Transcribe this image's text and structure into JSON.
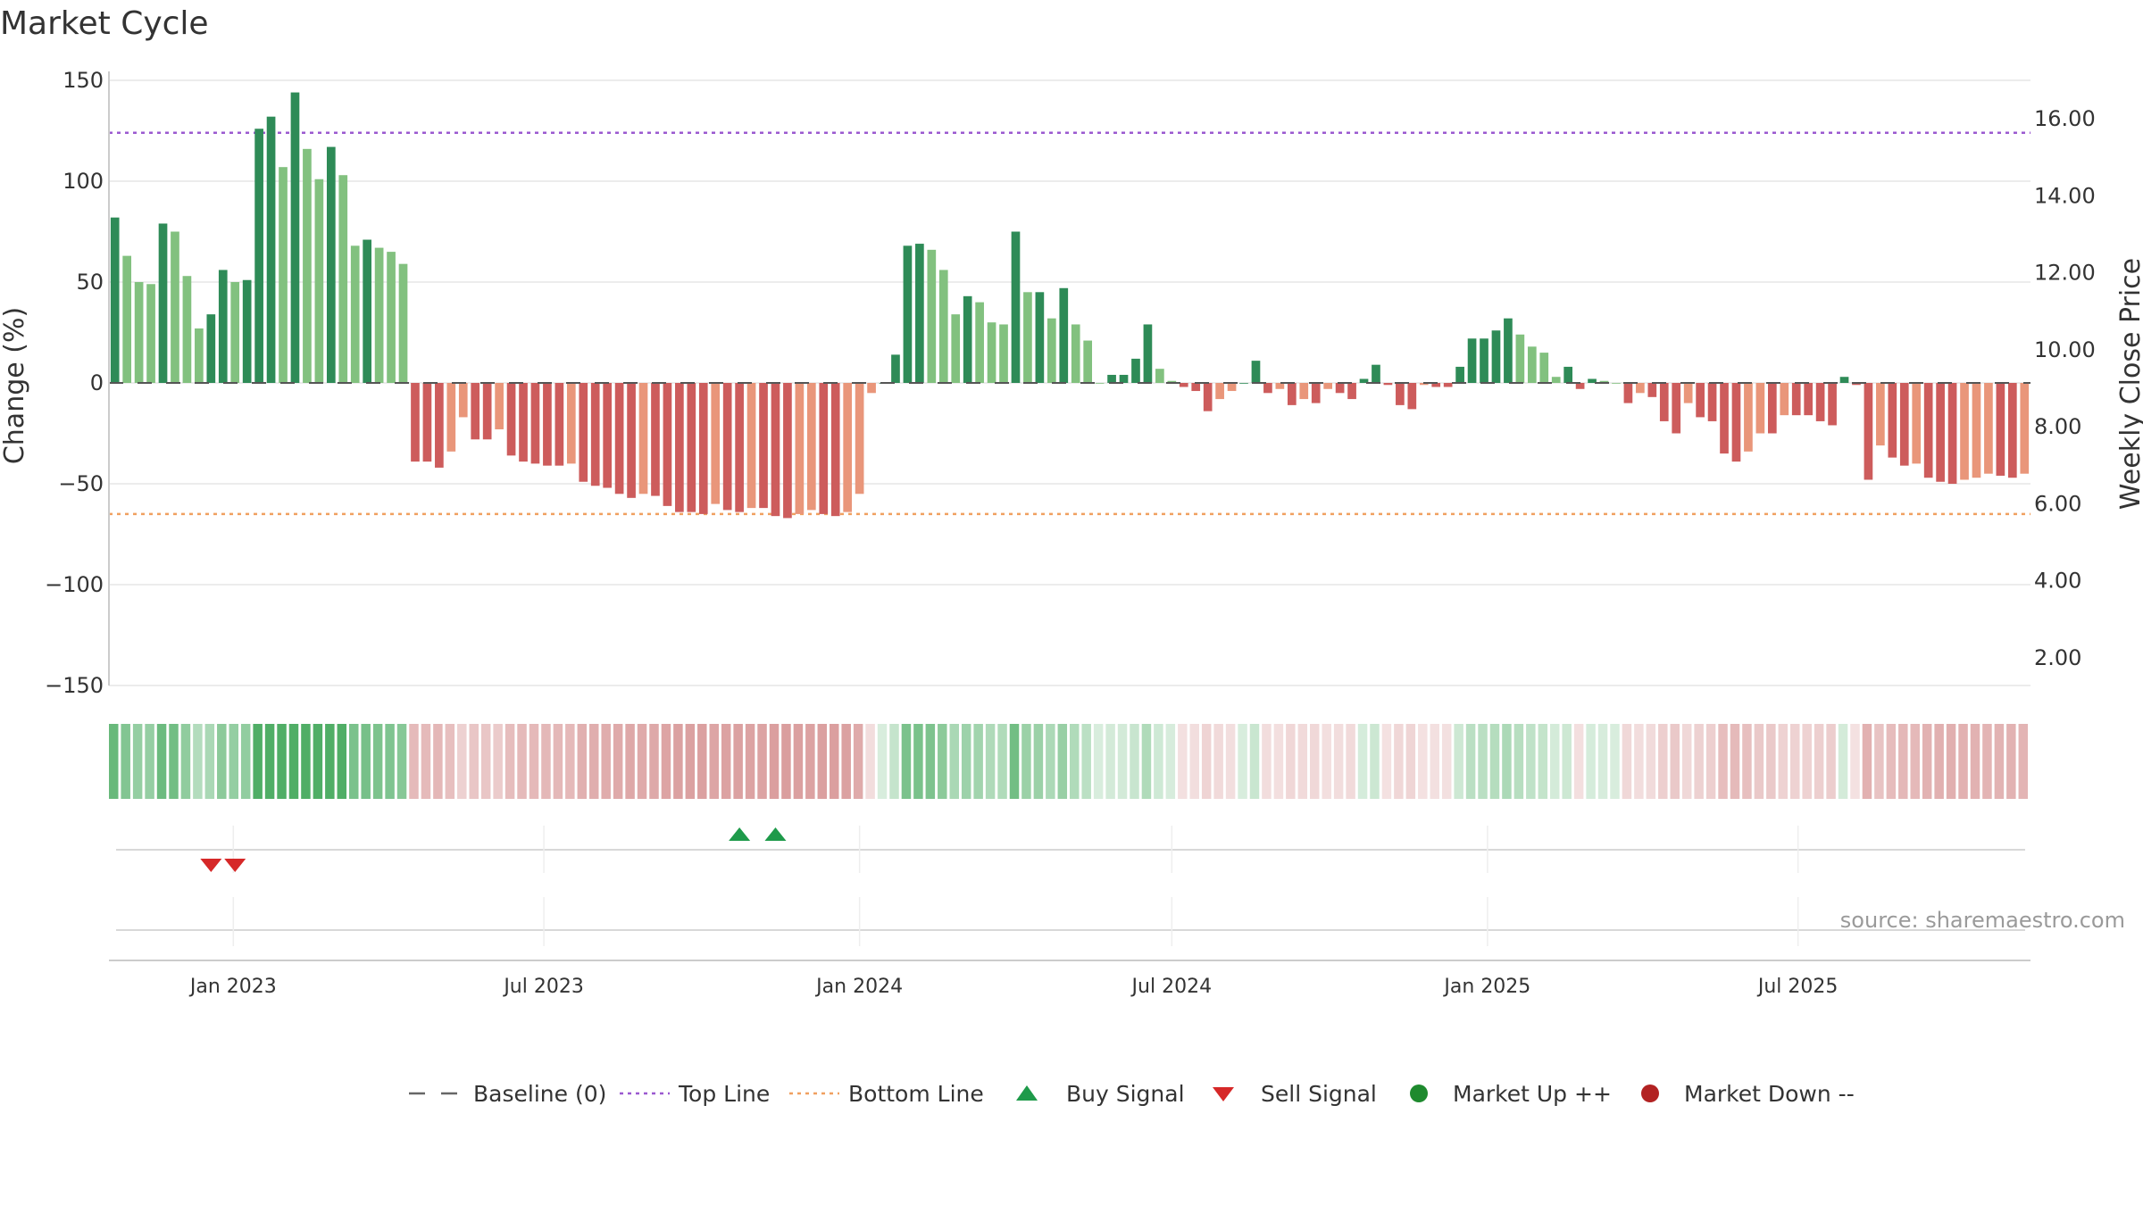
{
  "chart_data": {
    "type": "bar",
    "title": "Market Cycle",
    "ylabel_left": "Change (%)",
    "ylabel_right": "Weekly Close Price",
    "ylim_left": [
      -150,
      150
    ],
    "yticks_left": [
      150,
      100,
      50,
      0,
      -50,
      -100,
      -150
    ],
    "ytick_labels_left": [
      "150",
      "100",
      "50",
      "0",
      "−50",
      "−100",
      "−150"
    ],
    "ylim_right": [
      1.28,
      17.0
    ],
    "yticks_right": [
      16.0,
      14.0,
      12.0,
      10.0,
      8.0,
      6.0,
      4.0,
      2.0
    ],
    "ytick_labels_right": [
      "16.00",
      "14.00",
      "12.00",
      "10.00",
      "8.00",
      "6.00",
      "4.00",
      "2.00"
    ],
    "top_line": 124,
    "bottom_line": -65,
    "grid": true,
    "x_start": "2022-10-24",
    "x_tick_labels": [
      {
        "date": "2023-01-01",
        "label": "Jan 2023"
      },
      {
        "date": "2023-07-01",
        "label": "Jul 2023"
      },
      {
        "date": "2024-01-01",
        "label": "Jan 2024"
      },
      {
        "date": "2024-07-01",
        "label": "Jul 2024"
      },
      {
        "date": "2025-01-01",
        "label": "Jan 2025"
      },
      {
        "date": "2025-07-01",
        "label": "Jul 2025"
      }
    ],
    "series": [
      {
        "name": "Change (%)",
        "values": [
          82,
          63,
          50,
          49,
          79,
          75,
          53,
          27,
          34,
          56,
          50,
          51,
          126,
          132,
          107,
          144,
          116,
          101,
          117,
          103,
          68,
          71,
          67,
          65,
          59,
          -39,
          -39,
          -42,
          -34,
          -17,
          -28,
          -28,
          -23,
          -36,
          -39,
          -40,
          -41,
          -41,
          -40,
          -49,
          -51,
          -52,
          -55,
          -57,
          -55,
          -56,
          -61,
          -64,
          -64,
          -65,
          -60,
          -63,
          -64,
          -62,
          -62,
          -66,
          -67,
          -65,
          -63,
          -65,
          -66,
          -64,
          -55,
          -5,
          0,
          14,
          68,
          69,
          66,
          56,
          34,
          43,
          40,
          30,
          29,
          75,
          45,
          45,
          32,
          47,
          29,
          21,
          0,
          4,
          4,
          12,
          29,
          7,
          1,
          -2,
          -4,
          -14,
          -8,
          -4,
          0,
          11,
          -5,
          -3,
          -11,
          -8,
          -10,
          -3,
          -5,
          -8,
          2,
          9,
          -1,
          -11,
          -13,
          -1,
          -2,
          -2,
          8,
          22,
          22,
          26,
          32,
          24,
          18,
          15,
          3,
          8,
          -3,
          2,
          1,
          0,
          -10,
          -5,
          -7,
          -19,
          -25,
          -10,
          -17,
          -19,
          -35,
          -39,
          -34,
          -25,
          -25,
          -16,
          -16,
          -16,
          -19,
          -21,
          3,
          -1,
          -48,
          -31,
          -37,
          -41,
          -40,
          -47,
          -49,
          -50,
          -48,
          -47,
          -45,
          -46,
          -47,
          -45
        ]
      }
    ],
    "weekly_close_price_range_visible": "not plotted",
    "signals": {
      "buy": [
        "2023-10-23",
        "2023-11-13"
      ],
      "sell": [
        "2022-12-19",
        "2023-01-02"
      ]
    },
    "legend": {
      "position": "bottom-center",
      "entries": [
        {
          "label": "Baseline (0)",
          "marker": "dash",
          "color": "#666666"
        },
        {
          "label": "Top Line",
          "marker": "dotted-line",
          "color": "#9b59d0"
        },
        {
          "label": "Bottom Line",
          "marker": "dotted-line",
          "color": "#f0a060"
        },
        {
          "label": "Buy Signal",
          "marker": "triangle-up",
          "color": "#1e9a4a"
        },
        {
          "label": "Sell Signal",
          "marker": "triangle-down",
          "color": "#d62828"
        },
        {
          "label": "Market Up ++",
          "marker": "circle",
          "color": "#1e8a2e"
        },
        {
          "label": "Market Down --",
          "marker": "circle",
          "color": "#b22222"
        }
      ]
    },
    "source": "source: sharemaestro.com"
  },
  "colors": {
    "pos_dark": "#2e8b57",
    "pos_light": "#82c17f",
    "neg_dark": "#cd5c5c",
    "neg_light": "#e9967a",
    "top_line": "#9b59d0",
    "bottom_line": "#f0a060",
    "grid": "#e6e6e6",
    "buy": "#1e9a4a",
    "sell": "#d62828"
  }
}
